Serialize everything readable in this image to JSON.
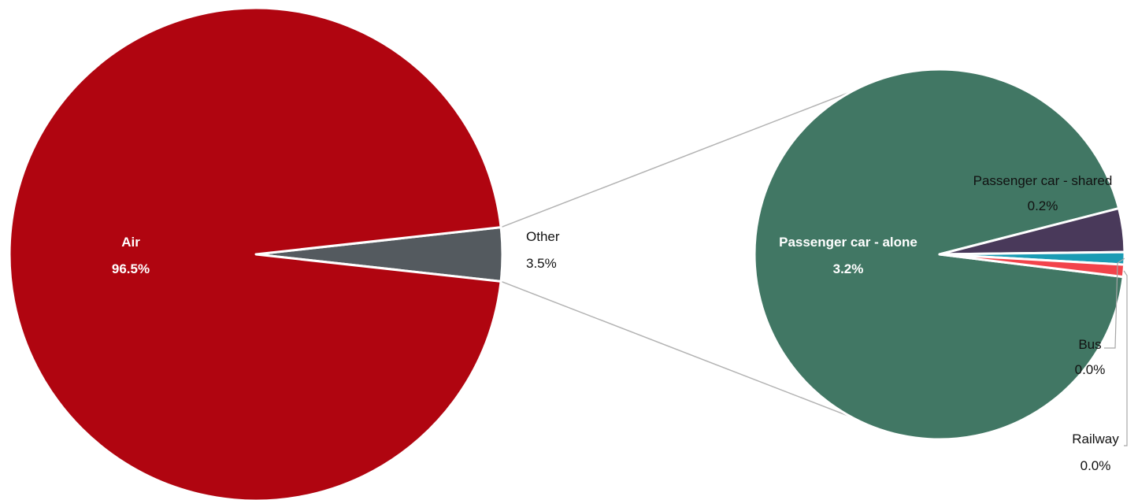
{
  "chart_data": {
    "type": "pie",
    "subtype": "pie-of-pie",
    "title": "",
    "main": {
      "slices": [
        {
          "name": "Air",
          "value": 96.5,
          "label": "96.5%",
          "color": "#b00510"
        },
        {
          "name": "Other",
          "value": 3.5,
          "label": "3.5%",
          "color": "#545a5f"
        }
      ]
    },
    "breakdown_of": "Other",
    "secondary": {
      "slices": [
        {
          "name": "Passenger car - alone",
          "value": 3.2,
          "label": "3.2%",
          "color": "#417764"
        },
        {
          "name": "Passenger car - shared",
          "value": 0.2,
          "label": "0.2%",
          "color": "#49395a"
        },
        {
          "name": "Bus",
          "value": 0.0,
          "label": "0.0%",
          "color": "#1a9bb4"
        },
        {
          "name": "Railway",
          "value": 0.0,
          "label": "0.0%",
          "color": "#f2434b"
        }
      ]
    }
  }
}
